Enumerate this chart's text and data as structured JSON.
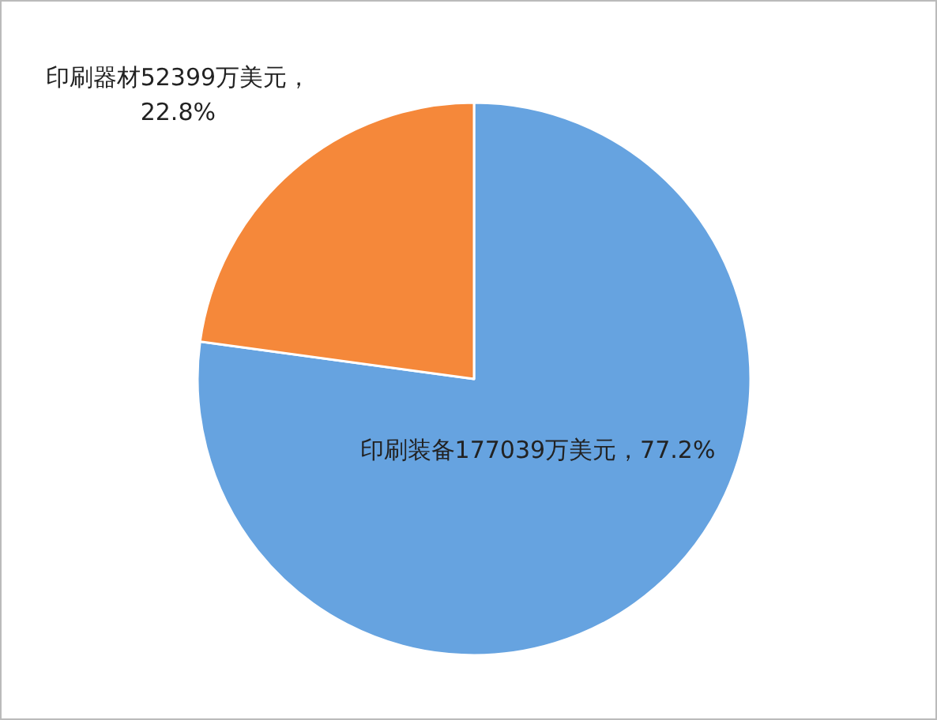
{
  "chart_data": {
    "type": "pie",
    "categories": [
      null,
      null
    ],
    "values": [
      177039,
      52399
    ],
    "colors": [
      "#66a3e0",
      "#f5883a"
    ],
    "value_labels": [
      "印刷装备177039万美元，77.2%",
      "印刷器材52399万美元，22.8%"
    ]
  }
}
